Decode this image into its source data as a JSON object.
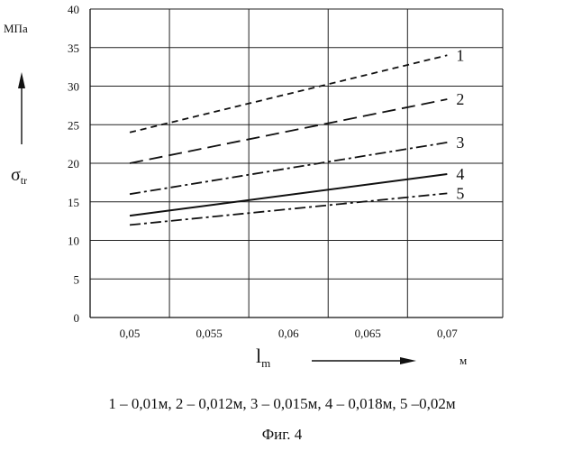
{
  "chart_data": {
    "type": "line",
    "title": "",
    "ylabel_unit": "МПа",
    "ylabel_symbol": "σ",
    "ylabel_subscript": "tr",
    "xlabel_symbol": "l",
    "xlabel_subscript": "m",
    "xlabel_unit": "м",
    "xlim": [
      0.05,
      0.07
    ],
    "ylim": [
      0,
      40
    ],
    "xticks": [
      "0,05",
      "0,055",
      "0,06",
      "0,065",
      "0,07"
    ],
    "xtick_values": [
      0.05,
      0.055,
      0.06,
      0.065,
      0.07
    ],
    "yticks": [
      "0",
      "5",
      "10",
      "15",
      "20",
      "25",
      "30",
      "35",
      "40"
    ],
    "ytick_values": [
      0,
      5,
      10,
      15,
      20,
      25,
      30,
      35,
      40
    ],
    "grid": true,
    "series": [
      {
        "name": "1",
        "style": "short-dash",
        "x": [
          0.05,
          0.07
        ],
        "y": [
          24,
          34
        ]
      },
      {
        "name": "2",
        "style": "long-dash",
        "x": [
          0.05,
          0.07
        ],
        "y": [
          20,
          28.3
        ]
      },
      {
        "name": "3",
        "style": "dash-dot",
        "x": [
          0.05,
          0.07
        ],
        "y": [
          16,
          22.7
        ]
      },
      {
        "name": "4",
        "style": "solid",
        "x": [
          0.05,
          0.07
        ],
        "y": [
          13.2,
          18.6
        ]
      },
      {
        "name": "5",
        "style": "dash-dot",
        "x": [
          0.05,
          0.07
        ],
        "y": [
          12,
          16.1
        ]
      }
    ]
  },
  "caption": "1 – 0,01м, 2 – 0,012м, 3 – 0,015м, 4 – 0,018м, 5 –0,02м",
  "figure_label": "Фиг. 4"
}
